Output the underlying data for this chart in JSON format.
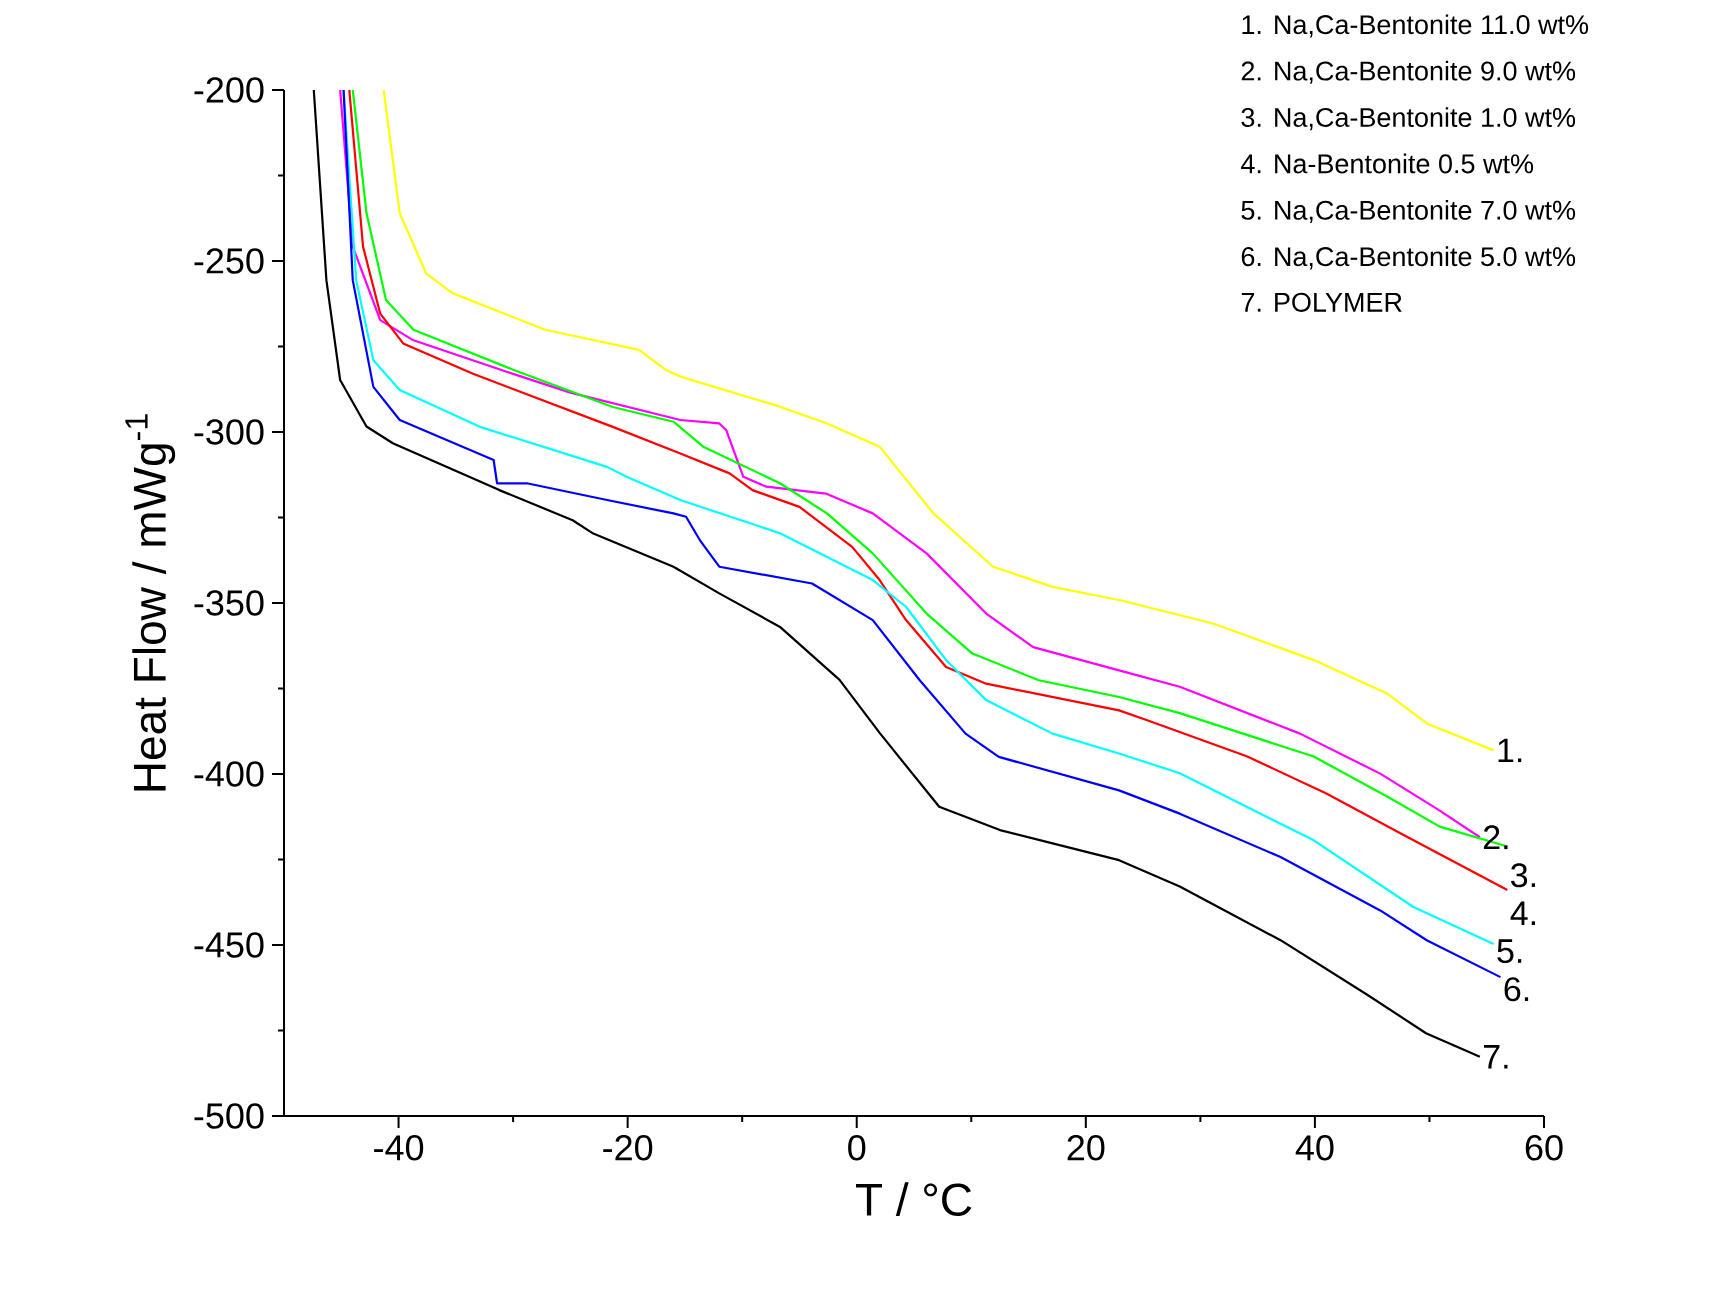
{
  "chart_data": {
    "type": "line",
    "xlabel": "T / °C",
    "ylabel": "Heat Flow / mWg$^{-1}$",
    "xlim": [
      -50,
      60
    ],
    "ylim": [
      -500,
      -200
    ],
    "xticks": [
      -40,
      -20,
      0,
      20,
      40,
      60
    ],
    "yticks": [
      -500,
      -450,
      -400,
      -350,
      -300,
      -250,
      -200
    ],
    "grid": false,
    "marker": "none",
    "line_style": "solid",
    "series": [
      {
        "name": "1.",
        "color": "#ffff00",
        "x": [
          -41.3,
          -39.9,
          -37.6,
          -35.3,
          -27.2,
          -19.0,
          -16.7,
          -15.4,
          -6.7,
          -2.6,
          2.0,
          6.7,
          11.9,
          17.1,
          23.0,
          31.1,
          39.9,
          46.3,
          49.8,
          55.6
        ],
        "values": [
          -200,
          -236,
          -253.6,
          -259.4,
          -270.1,
          -276,
          -281.8,
          -283.8,
          -292.6,
          -297.5,
          -304.3,
          -323.8,
          -339.4,
          -345.3,
          -349.2,
          -356,
          -366.7,
          -376.5,
          -385.3,
          -393.1
        ]
      },
      {
        "name": "2.",
        "color": "#ff00ff",
        "x": [
          -45.1,
          -44.0,
          -41.6,
          -38.7,
          -30.0,
          -25.0,
          -15.4,
          -12.0,
          -11.4,
          -9.9,
          -7.9,
          -2.7,
          1.4,
          6.1,
          11.3,
          15.4,
          22.9,
          28.2,
          38.7,
          45.7,
          50.9,
          54.4
        ],
        "values": [
          -200,
          -245.8,
          -267.3,
          -273.2,
          -283,
          -288.5,
          -296.5,
          -297.5,
          -299.4,
          -313.1,
          -316,
          -318,
          -323.8,
          -335.5,
          -353.1,
          -362.9,
          -369.7,
          -374.5,
          -388.2,
          -399.9,
          -410.7,
          -418.5
        ]
      },
      {
        "name": "3.",
        "color": "#00ff00",
        "x": [
          -44.0,
          -42.8,
          -41.1,
          -38.7,
          -30.0,
          -21.3,
          -16.0,
          -13.4,
          -6.7,
          -2.6,
          1.4,
          6.1,
          10.1,
          15.9,
          22.9,
          28.2,
          39.9,
          46.3,
          50.9,
          56.8
        ],
        "values": [
          -200,
          -236,
          -261.4,
          -270.1,
          -281.8,
          -292.7,
          -297,
          -304.3,
          -315,
          -323.8,
          -335.5,
          -353.1,
          -364.8,
          -372.6,
          -377.5,
          -382.2,
          -394.9,
          -406.6,
          -415.4,
          -421.2
        ]
      },
      {
        "name": "4.",
        "color": "#ff0000",
        "x": [
          -44.3,
          -43.1,
          -41.6,
          -39.6,
          -33.5,
          -21.3,
          -15.4,
          -11.1,
          -9.1,
          -5.0,
          -0.4,
          2.0,
          4.3,
          7.8,
          11.3,
          22.9,
          25.3,
          34.1,
          41.0,
          47.5,
          56.8
        ],
        "values": [
          -200,
          -245.8,
          -265.4,
          -274.1,
          -283,
          -298.5,
          -306.3,
          -312.1,
          -317,
          -321.9,
          -333.6,
          -343.3,
          -355,
          -368.7,
          -373.6,
          -381.4,
          -384.2,
          -394.9,
          -405.7,
          -417.4,
          -433.9
        ]
      },
      {
        "name": "5.",
        "color": "#00ffff",
        "x": [
          -44.8,
          -43.7,
          -42.2,
          -39.9,
          -32.9,
          -21.8,
          -20.1,
          -15.4,
          -6.7,
          1.4,
          4.3,
          7.8,
          11.3,
          17.1,
          22.9,
          28.2,
          39.9,
          48.6,
          55.6
        ],
        "values": [
          -200,
          -255.6,
          -279,
          -287.7,
          -298.5,
          -310.2,
          -313.1,
          -319.9,
          -329.6,
          -343.3,
          -351.1,
          -366.7,
          -378.4,
          -388.2,
          -394,
          -399.8,
          -419.4,
          -438.9,
          -449.7
        ]
      },
      {
        "name": "6.",
        "color": "#0000ff",
        "x": [
          -44.8,
          -44.0,
          -42.2,
          -39.9,
          -31.7,
          -31.4,
          -28.8,
          -21.8,
          -16.0,
          -14.9,
          -13.7,
          -12.0,
          -3.9,
          1.4,
          5.5,
          9.5,
          12.4,
          22.9,
          28.2,
          37.0,
          45.7,
          49.8,
          56.2
        ],
        "values": [
          -200,
          -255.6,
          -286.8,
          -296.5,
          -308.2,
          -315,
          -315,
          -319.9,
          -323.8,
          -324.8,
          -331.6,
          -339.4,
          -344.3,
          -355,
          -372.6,
          -388.2,
          -395,
          -404.8,
          -411.6,
          -424.3,
          -439.9,
          -448.7,
          -459.4
        ]
      },
      {
        "name": "7.",
        "color": "#000000",
        "x": [
          -47.4,
          -46.3,
          -45.1,
          -42.8,
          -40.5,
          -31.2,
          -24.8,
          -23.0,
          -16.0,
          -12.0,
          -6.7,
          -1.5,
          2.0,
          7.2,
          12.5,
          17.1,
          22.9,
          28.2,
          37.0,
          44.5,
          49.7,
          54.4
        ],
        "values": [
          -200,
          -255.6,
          -284.8,
          -298.4,
          -303.3,
          -317,
          -325.8,
          -329.7,
          -339.4,
          -347.2,
          -357,
          -372.5,
          -388,
          -409.6,
          -416.4,
          -420.3,
          -425.2,
          -432.9,
          -448.6,
          -464.4,
          -475.8,
          -482.7
        ]
      }
    ],
    "annotations": [
      "1. Na,Ca-Bentonite 11.0 wt%",
      "2. Na,Ca-Bentonite 9.0 wt%",
      "3. Na,Ca-Bentonite 1.0 wt%",
      "4. Na-Bentonite 0.5 wt%",
      "5. Na,Ca-Bentonite 7.0 wt%",
      "6. Na,Ca-Bentonite 5.0 wt%",
      "7. POLYMER"
    ]
  }
}
